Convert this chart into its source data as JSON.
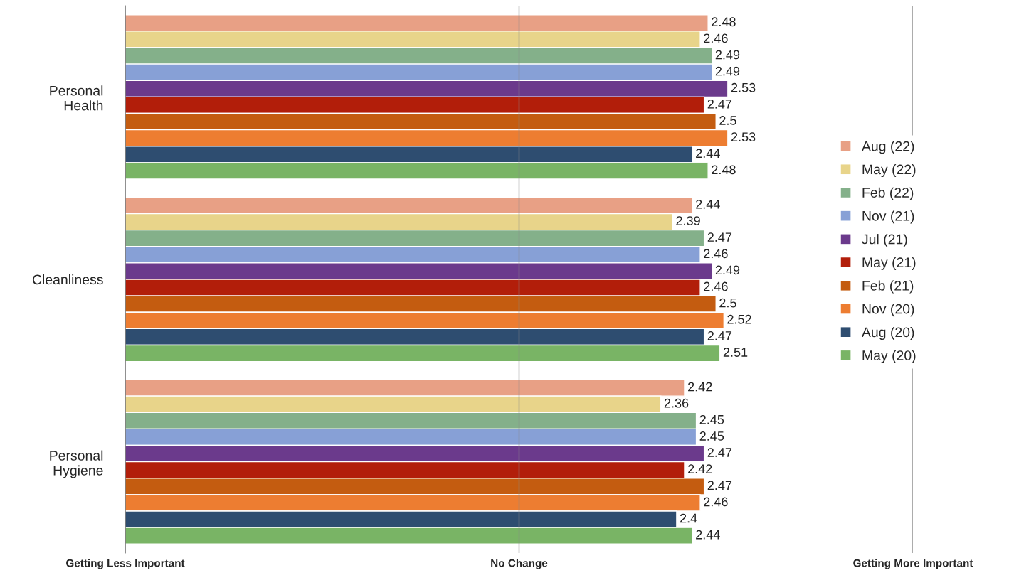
{
  "chart_data": {
    "type": "bar",
    "orientation": "horizontal",
    "categories": [
      "Personal Health",
      "Cleanliness",
      "Personal Hygiene"
    ],
    "series": [
      {
        "name": "Aug (22)",
        "color": "#e8a085",
        "values": [
          2.48,
          2.44,
          2.42
        ]
      },
      {
        "name": "May (22)",
        "color": "#e8d48a",
        "values": [
          2.46,
          2.39,
          2.36
        ]
      },
      {
        "name": "Feb (22)",
        "color": "#84b08a",
        "values": [
          2.49,
          2.47,
          2.45
        ]
      },
      {
        "name": "Nov (21)",
        "color": "#87a0d6",
        "values": [
          2.49,
          2.46,
          2.45
        ]
      },
      {
        "name": "Jul (21)",
        "color": "#6b3a8c",
        "values": [
          2.53,
          2.49,
          2.47
        ]
      },
      {
        "name": "May (21)",
        "color": "#b21e0a",
        "values": [
          2.47,
          2.46,
          2.42
        ]
      },
      {
        "name": "Feb (21)",
        "color": "#c45c10",
        "values": [
          2.5,
          2.5,
          2.47
        ]
      },
      {
        "name": "Nov (20)",
        "color": "#ed7d31",
        "values": [
          2.53,
          2.52,
          2.46
        ]
      },
      {
        "name": "Aug (20)",
        "color": "#2e4d70",
        "values": [
          2.44,
          2.47,
          2.4
        ]
      },
      {
        "name": "May (20)",
        "color": "#79b465",
        "values": [
          2.48,
          2.51,
          2.44
        ]
      }
    ],
    "xlim": [
      1,
      3
    ],
    "ref_lines": [
      {
        "axis": "x",
        "value": 1,
        "label": "Getting Less Important"
      },
      {
        "axis": "x",
        "value": 2,
        "label": "No Change"
      },
      {
        "axis": "x",
        "value": 3,
        "label": "Getting More Important"
      }
    ],
    "data_labels": true,
    "legend": "right"
  }
}
